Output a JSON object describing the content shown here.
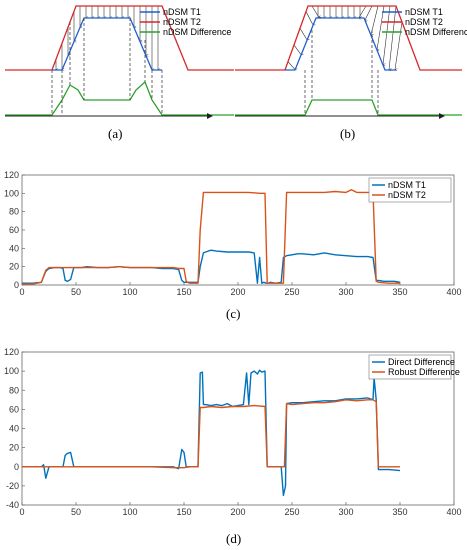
{
  "colors": {
    "t1": "#0072BD",
    "t2": "#D95319",
    "diag_t1": "#1f5fd0",
    "diag_t2": "#d62728",
    "diag_diff": "#2ca02c",
    "arrows": "#333333"
  },
  "panels": {
    "a": {
      "caption": "(a)",
      "legend": [
        "nDSM T1",
        "nDSM T2",
        "nDSM Difference"
      ]
    },
    "b": {
      "caption": "(b)",
      "legend": [
        "nDSM T1",
        "nDSM T2",
        "nDSM Difference"
      ]
    }
  },
  "chart_data": [
    {
      "id": "c",
      "caption": "(c)",
      "type": "line",
      "xlim": [
        0,
        400
      ],
      "ylim": [
        0,
        120
      ],
      "xticks": [
        0,
        50,
        100,
        150,
        200,
        250,
        300,
        350,
        400
      ],
      "yticks": [
        0,
        20,
        40,
        60,
        80,
        100,
        120
      ],
      "legend_position": "top-right",
      "grid": false,
      "series": [
        {
          "name": "nDSM T1",
          "color": "#0072BD",
          "x": [
            0,
            10,
            18,
            22,
            25,
            30,
            35,
            38,
            40,
            42,
            45,
            48,
            50,
            55,
            60,
            70,
            80,
            90,
            100,
            110,
            120,
            130,
            140,
            145,
            148,
            150,
            152,
            155,
            160,
            163,
            165,
            168,
            170,
            175,
            180,
            190,
            200,
            210,
            215,
            218,
            220,
            222,
            224,
            226,
            228,
            230,
            235,
            240,
            242,
            245,
            250,
            255,
            260,
            270,
            280,
            290,
            300,
            310,
            320,
            325,
            328,
            330,
            335,
            340,
            345,
            350
          ],
          "y": [
            2,
            2,
            3,
            15,
            18,
            19,
            19,
            18,
            5,
            4,
            6,
            19,
            19,
            19,
            20,
            19,
            19,
            20,
            19,
            19,
            19,
            18,
            18,
            17,
            5,
            3,
            3,
            3,
            3,
            3,
            20,
            35,
            36,
            38,
            37,
            36,
            36,
            36,
            35,
            2,
            30,
            2,
            3,
            2,
            2,
            3,
            2,
            3,
            30,
            32,
            33,
            34,
            34,
            33,
            35,
            33,
            32,
            31,
            31,
            30,
            5,
            5,
            4,
            4,
            4,
            3
          ]
        },
        {
          "name": "nDSM T2",
          "color": "#D95319",
          "x": [
            0,
            10,
            18,
            22,
            25,
            30,
            40,
            50,
            60,
            70,
            80,
            90,
            100,
            110,
            120,
            130,
            140,
            145,
            150,
            152,
            155,
            160,
            163,
            165,
            168,
            170,
            180,
            190,
            200,
            210,
            220,
            225,
            227,
            230,
            235,
            240,
            242,
            245,
            250,
            260,
            270,
            280,
            290,
            300,
            305,
            310,
            320,
            325,
            328,
            330,
            340,
            350
          ],
          "y": [
            1,
            1,
            3,
            16,
            19,
            19,
            19,
            19,
            19,
            19,
            19,
            20,
            19,
            19,
            19,
            19,
            19,
            18,
            18,
            4,
            2,
            2,
            2,
            60,
            101,
            101,
            101,
            101,
            101,
            101,
            100,
            100,
            2,
            2,
            2,
            2,
            2,
            101,
            101,
            101,
            101,
            101,
            102,
            101,
            104,
            101,
            101,
            101,
            4,
            3,
            2,
            2
          ]
        }
      ]
    },
    {
      "id": "d",
      "caption": "(d)",
      "type": "line",
      "xlim": [
        0,
        400
      ],
      "ylim": [
        -40,
        120
      ],
      "xticks": [
        0,
        50,
        100,
        150,
        200,
        250,
        300,
        350,
        400
      ],
      "yticks": [
        -40,
        -20,
        0,
        20,
        40,
        60,
        80,
        100,
        120
      ],
      "legend_position": "top-right",
      "grid": false,
      "series": [
        {
          "name": "Direct Difference",
          "color": "#0072BD",
          "x": [
            0,
            10,
            18,
            20,
            22,
            25,
            30,
            38,
            40,
            42,
            45,
            48,
            50,
            60,
            80,
            100,
            120,
            140,
            145,
            148,
            150,
            152,
            155,
            160,
            163,
            165,
            167,
            168,
            170,
            175,
            180,
            185,
            190,
            195,
            200,
            205,
            208,
            210,
            212,
            215,
            218,
            220,
            222,
            225,
            227,
            230,
            235,
            240,
            242,
            244,
            245,
            250,
            260,
            270,
            280,
            290,
            300,
            310,
            320,
            325,
            326,
            328,
            330,
            340,
            350
          ],
          "y": [
            0,
            0,
            0,
            2,
            -12,
            0,
            0,
            0,
            12,
            14,
            15,
            0,
            0,
            0,
            0,
            0,
            0,
            0,
            -2,
            18,
            15,
            0,
            0,
            0,
            0,
            98,
            99,
            65,
            65,
            64,
            65,
            64,
            66,
            63,
            64,
            65,
            98,
            65,
            98,
            100,
            97,
            101,
            99,
            100,
            0,
            0,
            0,
            0,
            -30,
            -20,
            66,
            67,
            67,
            68,
            69,
            69,
            71,
            71,
            72,
            70,
            93,
            70,
            -3,
            -3,
            -4
          ]
        },
        {
          "name": "Robust Difference",
          "color": "#D95319",
          "x": [
            0,
            20,
            40,
            60,
            80,
            100,
            120,
            140,
            150,
            155,
            160,
            163,
            165,
            168,
            175,
            185,
            195,
            205,
            215,
            225,
            227,
            230,
            240,
            243,
            245,
            250,
            260,
            270,
            280,
            290,
            300,
            310,
            320,
            325,
            328,
            330,
            340,
            350
          ],
          "y": [
            0,
            0,
            0,
            0,
            0,
            0,
            0,
            -1,
            -1,
            0,
            0,
            0,
            62,
            62,
            63,
            62,
            63,
            63,
            64,
            63,
            0,
            0,
            0,
            0,
            66,
            65,
            66,
            67,
            67,
            68,
            70,
            69,
            70,
            70,
            68,
            0,
            0,
            0
          ]
        }
      ]
    }
  ]
}
